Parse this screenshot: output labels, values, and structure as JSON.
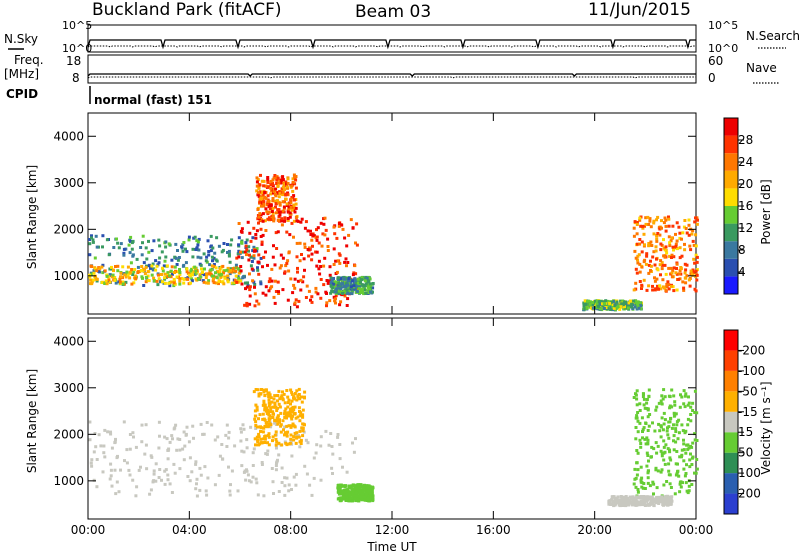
{
  "header": {
    "station": "Buckland Park (fitACF)",
    "beam": "Beam 03",
    "date": "11/Jun/2015"
  },
  "top_panels": {
    "nsky_label": "N.Sky",
    "nsearch_label": "N.Search",
    "log_ticks": [
      "10^5",
      "10^0"
    ],
    "freq_label": "Freq.",
    "freq_unit": "[MHz]",
    "freq_ticks": [
      "18",
      "8"
    ],
    "nave_label": "Nave",
    "nave_ticks": [
      "60",
      "0"
    ],
    "cpid_label": "CPID",
    "cpid_value": "normal (fast) 151"
  },
  "chart_data": [
    {
      "type": "heatmap",
      "name": "power",
      "ylabel": "Slant Range [km]",
      "xlabel": "",
      "y_ticks": [
        1000,
        2000,
        3000,
        4000
      ],
      "ylim": [
        180,
        4500
      ],
      "x_ticks": [
        "00:00",
        "04:00",
        "08:00",
        "12:00",
        "16:00",
        "20:00",
        "00:00"
      ],
      "xlim_hours": [
        0,
        24
      ],
      "colorbar": {
        "label": "Power [dB]",
        "ticks": [
          4,
          8,
          12,
          16,
          20,
          24,
          28
        ],
        "colors": [
          "#1a1aff",
          "#2a4fb0",
          "#3a78a0",
          "#3a9a60",
          "#66cc33",
          "#ffdd00",
          "#ffaa00",
          "#ff7700",
          "#ff3300",
          "#ee0000"
        ]
      },
      "regions": [
        {
          "t": [
            0.0,
            6.8
          ],
          "r": [
            820,
            1900
          ],
          "v": 8
        },
        {
          "t": [
            0.0,
            6.0
          ],
          "r": [
            850,
            1250
          ],
          "v": 18
        },
        {
          "t": [
            5.8,
            10.6
          ],
          "r": [
            350,
            2300
          ],
          "v": 26
        },
        {
          "t": [
            6.6,
            8.2
          ],
          "r": [
            2200,
            3200
          ],
          "v": 24
        },
        {
          "t": [
            9.5,
            11.2
          ],
          "r": [
            650,
            1000
          ],
          "v": 10
        },
        {
          "t": [
            21.5,
            24.0
          ],
          "r": [
            700,
            2300
          ],
          "v": 22
        },
        {
          "t": [
            19.5,
            21.8
          ],
          "r": [
            300,
            500
          ],
          "v": 12
        }
      ]
    },
    {
      "type": "heatmap",
      "name": "velocity",
      "ylabel": "Slant Range [km]",
      "xlabel": "Time UT",
      "y_ticks": [
        1000,
        2000,
        3000,
        4000
      ],
      "ylim": [
        180,
        4500
      ],
      "x_ticks": [
        "00:00",
        "04:00",
        "08:00",
        "12:00",
        "16:00",
        "20:00",
        "00:00"
      ],
      "xlim_hours": [
        0,
        24
      ],
      "colorbar": {
        "label": "Velocity [m s⁻¹]",
        "ticks": [
          "200",
          "100",
          "50",
          "15",
          "-15",
          "-50",
          "-100",
          "-200"
        ],
        "colors": [
          "#2b3fd0",
          "#2a5fb0",
          "#2e8f55",
          "#66cc33",
          "#c8c8c0",
          "#ffb000",
          "#ff8000",
          "#ff4000",
          "#ff0000"
        ]
      },
      "regions": [
        {
          "t": [
            0.0,
            10.5
          ],
          "r": [
            700,
            2300
          ],
          "v": 0
        },
        {
          "t": [
            6.5,
            8.5
          ],
          "r": [
            1800,
            3000
          ],
          "v": -30
        },
        {
          "t": [
            9.8,
            11.2
          ],
          "r": [
            600,
            950
          ],
          "v": 30
        },
        {
          "t": [
            21.5,
            24.0
          ],
          "r": [
            700,
            3000
          ],
          "v": 30
        },
        {
          "t": [
            20.5,
            23.0
          ],
          "r": [
            500,
            700
          ],
          "v": 0
        }
      ]
    }
  ]
}
